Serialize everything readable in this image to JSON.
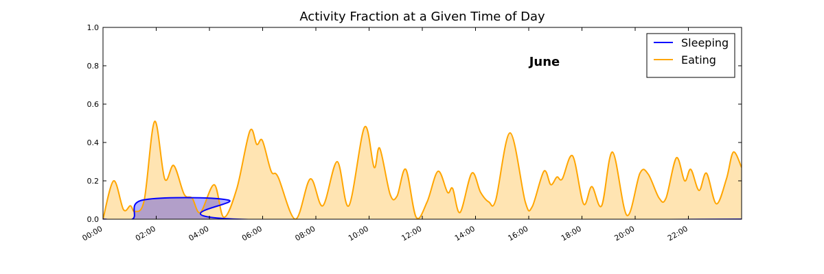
{
  "chart_data": {
    "type": "line",
    "title": "Activity Fraction at a Given Time of Day",
    "annotation": "June",
    "xlim": [
      0,
      24
    ],
    "xticks": [
      {
        "value": 0,
        "label": "00:00"
      },
      {
        "value": 2,
        "label": "02:00"
      },
      {
        "value": 4,
        "label": "04:00"
      },
      {
        "value": 6,
        "label": "06:00"
      },
      {
        "value": 8,
        "label": "08:00"
      },
      {
        "value": 10,
        "label": "10:00"
      },
      {
        "value": 12,
        "label": "12:00"
      },
      {
        "value": 14,
        "label": "14:00"
      },
      {
        "value": 16,
        "label": "16:00"
      },
      {
        "value": 18,
        "label": "18:00"
      },
      {
        "value": 20,
        "label": "20:00"
      },
      {
        "value": 22,
        "label": "22:00"
      }
    ],
    "ylim": [
      0,
      1
    ],
    "yticks": [
      {
        "value": 0,
        "label": "0.0"
      },
      0.2,
      0.4,
      0.6,
      0.8,
      {
        "value": 1,
        "label": "1.0"
      }
    ],
    "grid": false,
    "legend": "upper right",
    "fill": true,
    "series": [
      {
        "name": "Sleeping",
        "color": "#0000ff",
        "x": [
          0,
          1.1,
          1.5,
          4.7,
          5.05,
          24
        ],
        "values": [
          0,
          0,
          0.1,
          0.1,
          0,
          0
        ]
      },
      {
        "name": "Eating",
        "color": "#ffa500",
        "x": [
          0,
          0.4,
          0.77,
          1.03,
          1.2,
          1.55,
          1.94,
          2.32,
          2.66,
          3.05,
          3.35,
          3.66,
          4.18,
          4.54,
          5.03,
          5.52,
          5.78,
          5.99,
          6.32,
          6.58,
          7.23,
          7.79,
          8.26,
          8.8,
          9.24,
          9.83,
          10.19,
          10.4,
          10.79,
          11.05,
          11.38,
          11.77,
          12.18,
          12.59,
          12.95,
          13.14,
          13.42,
          13.86,
          14.19,
          14.5,
          14.76,
          15.3,
          15.87,
          16.13,
          16.57,
          16.83,
          17.06,
          17.26,
          17.65,
          18.06,
          18.37,
          18.74,
          19.15,
          19.69,
          20.18,
          20.49,
          20.9,
          21.16,
          21.55,
          21.86,
          22.09,
          22.4,
          22.68,
          23.05,
          23.43,
          23.69,
          24
        ],
        "values": [
          0,
          0.2,
          0.05,
          0.07,
          0.04,
          0.1,
          0.51,
          0.21,
          0.28,
          0.13,
          0.11,
          0.035,
          0.18,
          0.01,
          0.16,
          0.46,
          0.39,
          0.41,
          0.25,
          0.22,
          0,
          0.21,
          0.07,
          0.3,
          0.07,
          0.48,
          0.27,
          0.37,
          0.13,
          0.12,
          0.26,
          0.01,
          0.09,
          0.25,
          0.14,
          0.16,
          0.035,
          0.24,
          0.14,
          0.09,
          0.1,
          0.45,
          0.09,
          0.065,
          0.25,
          0.18,
          0.22,
          0.21,
          0.33,
          0.08,
          0.17,
          0.07,
          0.35,
          0.02,
          0.24,
          0.235,
          0.11,
          0.11,
          0.32,
          0.2,
          0.26,
          0.15,
          0.24,
          0.08,
          0.21,
          0.35,
          0.27
        ]
      }
    ]
  }
}
